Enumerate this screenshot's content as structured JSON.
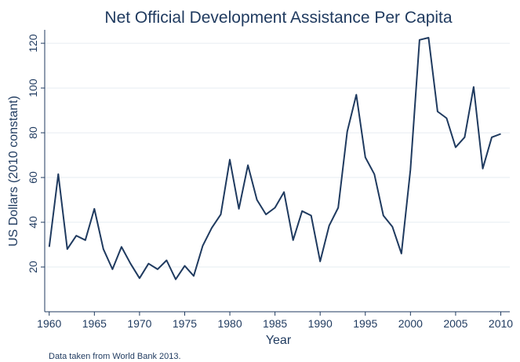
{
  "chart_data": {
    "type": "line",
    "title": "Net Official Development Assistance Per Capita",
    "xlabel": "Year",
    "ylabel": "US Dollars (2010 constant)",
    "note": "Data taken from World Bank 2013.",
    "xlim": [
      1959.5,
      2011
    ],
    "ylim": [
      0,
      126
    ],
    "xticks": [
      1960,
      1965,
      1970,
      1975,
      1980,
      1985,
      1990,
      1995,
      2000,
      2005,
      2010
    ],
    "yticks": [
      20,
      40,
      60,
      80,
      100,
      120
    ],
    "grid": true,
    "line_color": "#1f3a5f",
    "series": [
      {
        "x": [
          1960,
          1961,
          1962,
          1963,
          1964,
          1965,
          1966,
          1967,
          1968,
          1969,
          1970,
          1971,
          1972,
          1973,
          1974,
          1975,
          1976,
          1977,
          1978,
          1979,
          1980,
          1981,
          1982,
          1983,
          1984,
          1985,
          1986,
          1987,
          1988,
          1989,
          1990,
          1991,
          1992,
          1993,
          1994,
          1995,
          1996,
          1997,
          1998,
          1999,
          2000,
          2001,
          2002,
          2003,
          2004,
          2005,
          2006,
          2007,
          2008,
          2009,
          2010
        ],
        "values": [
          29,
          61.5,
          28,
          34,
          32,
          46,
          28,
          19,
          29,
          21.5,
          15,
          21.5,
          19,
          23,
          14.5,
          20.5,
          16,
          29.5,
          37.5,
          43.5,
          68,
          46,
          65.5,
          50,
          43.5,
          46.5,
          53.5,
          32,
          45,
          43,
          22.5,
          38.5,
          46.5,
          80.5,
          97,
          69,
          61.5,
          43,
          38,
          26,
          63.5,
          121.5,
          122.5,
          89.5,
          86.5,
          73.5,
          78,
          100.5,
          64,
          78,
          79.5
        ]
      }
    ]
  }
}
